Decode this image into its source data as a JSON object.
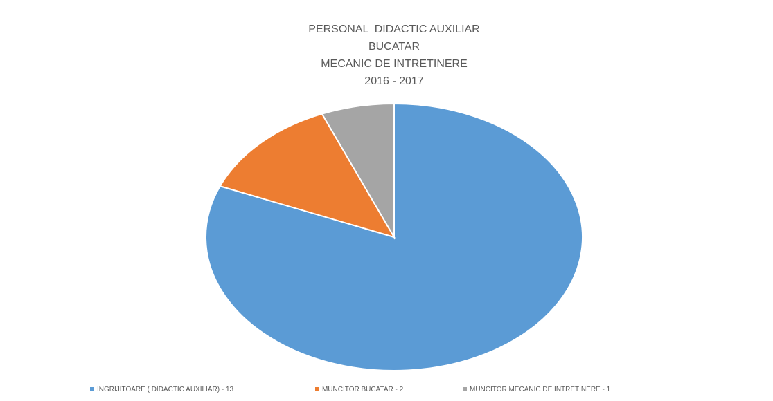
{
  "chart_data": {
    "type": "pie",
    "title": [
      "PERSONAL  DIDACTIC AUXILIAR",
      "BUCATAR",
      "MECANIC DE INTRETINERE",
      "2016 - 2017"
    ],
    "categories": [
      "INGRIJITOARE ( DIDACTIC AUXILIAR) - 13",
      "MUNCITOR BUCATAR - 2",
      "MUNCITOR MECANIC DE INTRETINERE - 1"
    ],
    "values": [
      13,
      2,
      1
    ],
    "colors": [
      "#5b9bd5",
      "#ed7d31",
      "#a5a5a5"
    ],
    "legend": "bottom"
  }
}
